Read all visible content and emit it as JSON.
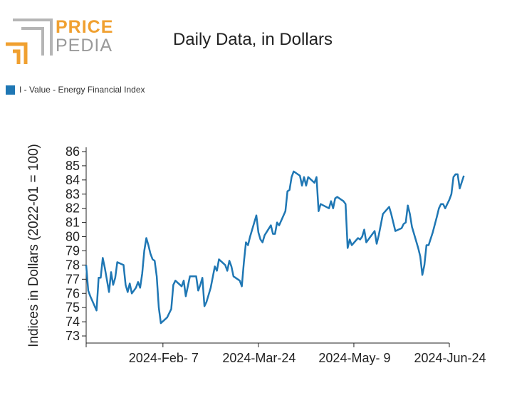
{
  "logo": {
    "top": "PRICE",
    "bottom": "PEDIA",
    "colors": {
      "accent": "#f0a030",
      "gray": "#9a9a9a"
    }
  },
  "chart_data": {
    "type": "line",
    "title": "Daily Data, in Dollars",
    "ylabel": "Indices in Dollars (2022-01 = 100)",
    "xlabel": "",
    "ylim": [
      72.5,
      86.3
    ],
    "yticks": [
      73,
      74,
      75,
      76,
      77,
      78,
      79,
      80,
      81,
      82,
      83,
      84,
      85,
      86
    ],
    "xlim": [
      "2024-01-01",
      "2024-06-24"
    ],
    "xticks": [
      {
        "date": "2024-02-07",
        "label": "2024-Feb- 7"
      },
      {
        "date": "2024-03-24",
        "label": "2024-Mar-24"
      },
      {
        "date": "2024-05-09",
        "label": "2024-May- 9"
      },
      {
        "date": "2024-06-24",
        "label": "2024-Jun-24"
      }
    ],
    "legend_position": "top-left",
    "series": [
      {
        "name": "I - Value - Energy Financial Index",
        "color": "#1f77b4",
        "points": [
          [
            "2024-01-01",
            78.0
          ],
          [
            "2024-01-02",
            76.2
          ],
          [
            "2024-01-03",
            75.8
          ],
          [
            "2024-01-06",
            74.8
          ],
          [
            "2024-01-07",
            77.1
          ],
          [
            "2024-01-08",
            77.1
          ],
          [
            "2024-01-09",
            78.5
          ],
          [
            "2024-01-10",
            77.8
          ],
          [
            "2024-01-12",
            76.1
          ],
          [
            "2024-01-13",
            77.5
          ],
          [
            "2024-01-14",
            76.6
          ],
          [
            "2024-01-15",
            77.1
          ],
          [
            "2024-01-16",
            78.2
          ],
          [
            "2024-01-19",
            78.0
          ],
          [
            "2024-01-20",
            76.6
          ],
          [
            "2024-01-21",
            76.1
          ],
          [
            "2024-01-22",
            76.7
          ],
          [
            "2024-01-23",
            76.0
          ],
          [
            "2024-01-25",
            76.4
          ],
          [
            "2024-01-26",
            76.8
          ],
          [
            "2024-01-27",
            76.4
          ],
          [
            "2024-01-28",
            77.4
          ],
          [
            "2024-01-29",
            79.0
          ],
          [
            "2024-01-30",
            79.9
          ],
          [
            "2024-01-31",
            79.4
          ],
          [
            "2024-02-01",
            78.8
          ],
          [
            "2024-02-02",
            78.4
          ],
          [
            "2024-02-03",
            78.3
          ],
          [
            "2024-02-04",
            77.2
          ],
          [
            "2024-02-05",
            75.0
          ],
          [
            "2024-02-06",
            73.9
          ],
          [
            "2024-02-09",
            74.3
          ],
          [
            "2024-02-11",
            74.9
          ],
          [
            "2024-02-12",
            76.6
          ],
          [
            "2024-02-13",
            76.9
          ],
          [
            "2024-02-16",
            76.5
          ],
          [
            "2024-02-17",
            76.9
          ],
          [
            "2024-02-18",
            75.8
          ],
          [
            "2024-02-20",
            77.2
          ],
          [
            "2024-02-23",
            77.2
          ],
          [
            "2024-02-24",
            76.2
          ],
          [
            "2024-02-25",
            76.6
          ],
          [
            "2024-02-26",
            77.1
          ],
          [
            "2024-02-27",
            75.1
          ],
          [
            "2024-02-28",
            75.4
          ],
          [
            "2024-03-01",
            76.4
          ],
          [
            "2024-03-03",
            77.9
          ],
          [
            "2024-03-04",
            77.6
          ],
          [
            "2024-03-05",
            78.4
          ],
          [
            "2024-03-08",
            78.0
          ],
          [
            "2024-03-09",
            77.6
          ],
          [
            "2024-03-10",
            78.3
          ],
          [
            "2024-03-11",
            77.9
          ],
          [
            "2024-03-12",
            77.2
          ],
          [
            "2024-03-15",
            76.9
          ],
          [
            "2024-03-16",
            76.5
          ],
          [
            "2024-03-17",
            78.2
          ],
          [
            "2024-03-18",
            79.6
          ],
          [
            "2024-03-19",
            79.4
          ],
          [
            "2024-03-20",
            80.0
          ],
          [
            "2024-03-23",
            81.5
          ],
          [
            "2024-03-24",
            80.3
          ],
          [
            "2024-03-25",
            79.8
          ],
          [
            "2024-03-26",
            79.6
          ],
          [
            "2024-03-27",
            80.1
          ],
          [
            "2024-03-30",
            80.8
          ],
          [
            "2024-03-31",
            80.2
          ],
          [
            "2024-04-01",
            80.2
          ],
          [
            "2024-04-02",
            81.0
          ],
          [
            "2024-04-03",
            80.8
          ],
          [
            "2024-04-06",
            81.8
          ],
          [
            "2024-04-07",
            83.2
          ],
          [
            "2024-04-08",
            83.3
          ],
          [
            "2024-04-09",
            84.2
          ],
          [
            "2024-04-10",
            84.6
          ],
          [
            "2024-04-13",
            84.3
          ],
          [
            "2024-04-14",
            83.6
          ],
          [
            "2024-04-15",
            84.2
          ],
          [
            "2024-04-16",
            83.6
          ],
          [
            "2024-04-17",
            84.2
          ],
          [
            "2024-04-20",
            83.8
          ],
          [
            "2024-04-21",
            84.2
          ],
          [
            "2024-04-22",
            81.8
          ],
          [
            "2024-04-23",
            82.3
          ],
          [
            "2024-04-27",
            82.0
          ],
          [
            "2024-04-28",
            82.5
          ],
          [
            "2024-04-29",
            82.0
          ],
          [
            "2024-04-30",
            82.7
          ],
          [
            "2024-05-01",
            82.8
          ],
          [
            "2024-05-04",
            82.5
          ],
          [
            "2024-05-05",
            82.3
          ],
          [
            "2024-05-06",
            79.2
          ],
          [
            "2024-05-07",
            79.8
          ],
          [
            "2024-05-08",
            79.4
          ],
          [
            "2024-05-11",
            79.9
          ],
          [
            "2024-05-12",
            79.8
          ],
          [
            "2024-05-13",
            80.0
          ],
          [
            "2024-05-14",
            80.5
          ],
          [
            "2024-05-15",
            79.6
          ],
          [
            "2024-05-19",
            80.4
          ],
          [
            "2024-05-20",
            79.5
          ],
          [
            "2024-05-21",
            80.1
          ],
          [
            "2024-05-23",
            81.6
          ],
          [
            "2024-05-26",
            82.1
          ],
          [
            "2024-05-27",
            81.6
          ],
          [
            "2024-05-29",
            80.4
          ],
          [
            "2024-06-01",
            80.6
          ],
          [
            "2024-06-02",
            80.9
          ],
          [
            "2024-06-03",
            81.0
          ],
          [
            "2024-06-04",
            82.2
          ],
          [
            "2024-06-05",
            81.6
          ],
          [
            "2024-06-06",
            80.7
          ],
          [
            "2024-06-09",
            79.2
          ],
          [
            "2024-06-10",
            78.6
          ],
          [
            "2024-06-11",
            77.3
          ],
          [
            "2024-06-12",
            78.0
          ],
          [
            "2024-06-13",
            79.4
          ],
          [
            "2024-06-14",
            79.4
          ],
          [
            "2024-06-16",
            80.3
          ],
          [
            "2024-06-18",
            81.4
          ],
          [
            "2024-06-19",
            82.0
          ],
          [
            "2024-06-20",
            82.3
          ],
          [
            "2024-06-21",
            82.3
          ],
          [
            "2024-06-22",
            82.0
          ],
          [
            "2024-06-24",
            82.6
          ],
          [
            "2024-06-25",
            83.0
          ],
          [
            "2024-06-26",
            84.2
          ],
          [
            "2024-06-27",
            84.4
          ],
          [
            "2024-06-28",
            84.4
          ],
          [
            "2024-06-29",
            83.4
          ],
          [
            "2024-07-01",
            84.3
          ]
        ]
      }
    ]
  }
}
